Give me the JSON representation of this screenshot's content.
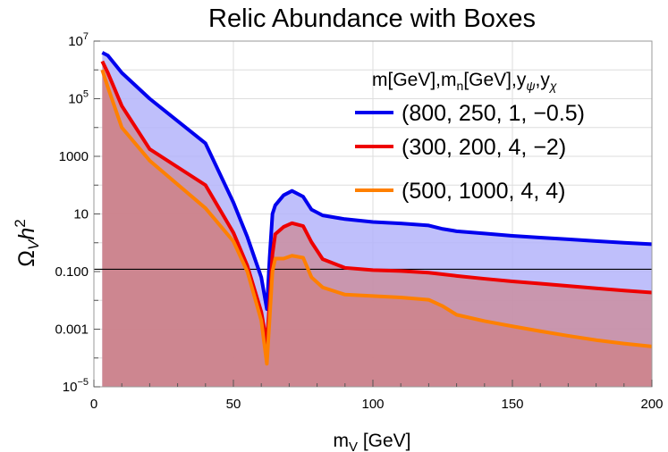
{
  "chart_data": {
    "type": "area",
    "title": "Relic Abundance with Boxes",
    "xlabel": "m",
    "xlabel_sub": "V",
    "xlabel_unit": " [GeV]",
    "ylabel": "Ω",
    "ylabel_sub": "V",
    "ylabel_h": "h",
    "ylabel_sup": "2",
    "xlim": [
      0,
      200
    ],
    "ylim_log10": [
      -5,
      7
    ],
    "y_scale": "log",
    "grid": true,
    "x_ticks": [
      "0",
      "50",
      "100",
      "150",
      "200"
    ],
    "x_tick_values": [
      0,
      50,
      100,
      150,
      200
    ],
    "y_ticks": [
      {
        "exp": -5,
        "base": "10",
        "sup": "−5"
      },
      {
        "exp": -3,
        "text": "0.001"
      },
      {
        "exp": -1,
        "text": "0.100"
      },
      {
        "exp": 1,
        "text": "10"
      },
      {
        "exp": 3,
        "text": "1000"
      },
      {
        "exp": 5,
        "base": "10",
        "sup": "5"
      },
      {
        "exp": 7,
        "base": "10",
        "sup": "7"
      }
    ],
    "reference_line_y": 0.12,
    "legend_title": {
      "base": "m[GeV],m",
      "sub": "n",
      "mid": "[GeV],y",
      "sub2": "ψ",
      "comma": ",y",
      "sub3": "χ"
    },
    "legend_placement": "top-right",
    "series": [
      {
        "name": "(800, 250, 1, −0.5)",
        "color": "#0000ee",
        "fill": "#b4b4fa",
        "x": [
          3,
          5,
          10,
          20,
          40,
          50,
          55,
          60,
          62,
          63,
          64,
          65,
          68,
          71,
          75,
          78,
          82,
          90,
          100,
          110,
          120,
          125,
          130,
          140,
          150,
          160,
          170,
          180,
          190,
          200
        ],
        "log10y": [
          6.6,
          6.5,
          5.9,
          5.0,
          3.45,
          1.4,
          0.2,
          -1.2,
          -2.3,
          -0.5,
          1.0,
          1.3,
          1.65,
          1.8,
          1.6,
          1.15,
          0.95,
          0.82,
          0.72,
          0.67,
          0.6,
          0.48,
          0.4,
          0.32,
          0.24,
          0.18,
          0.12,
          0.06,
          0.0,
          -0.05
        ]
      },
      {
        "name": "(300, 200, 4, −2)",
        "color": "#ee0000",
        "fill": "#d07c7c",
        "x": [
          3,
          5,
          10,
          20,
          40,
          50,
          55,
          60,
          62,
          63,
          64,
          65,
          68,
          71,
          75,
          78,
          82,
          90,
          100,
          110,
          120,
          130,
          140,
          150,
          160,
          170,
          180,
          190,
          200
        ],
        "log10y": [
          6.3,
          5.9,
          4.75,
          3.25,
          2.0,
          0.35,
          -0.8,
          -2.4,
          -3.5,
          -2.0,
          -0.4,
          0.3,
          0.55,
          0.68,
          0.58,
          0.02,
          -0.57,
          -0.87,
          -0.95,
          -0.98,
          -1.04,
          -1.15,
          -1.25,
          -1.34,
          -1.42,
          -1.5,
          -1.58,
          -1.66,
          -1.73
        ]
      },
      {
        "name": "(500, 1000, 4, 4)",
        "color": "#ff8000",
        "fill": "#d07c7c",
        "x": [
          3,
          5,
          10,
          20,
          40,
          50,
          55,
          60,
          62,
          63,
          64,
          65,
          68,
          71,
          75,
          78,
          82,
          90,
          100,
          110,
          120,
          125,
          130,
          140,
          150,
          160,
          170,
          180,
          190,
          200
        ],
        "log10y": [
          6.0,
          5.4,
          4.0,
          2.85,
          1.2,
          0.05,
          -1.0,
          -2.7,
          -4.2,
          -2.6,
          -1.0,
          -0.55,
          -0.55,
          -0.45,
          -0.52,
          -1.2,
          -1.55,
          -1.8,
          -1.85,
          -1.9,
          -1.98,
          -2.2,
          -2.5,
          -2.72,
          -2.9,
          -3.07,
          -3.23,
          -3.38,
          -3.5,
          -3.6
        ]
      }
    ]
  }
}
